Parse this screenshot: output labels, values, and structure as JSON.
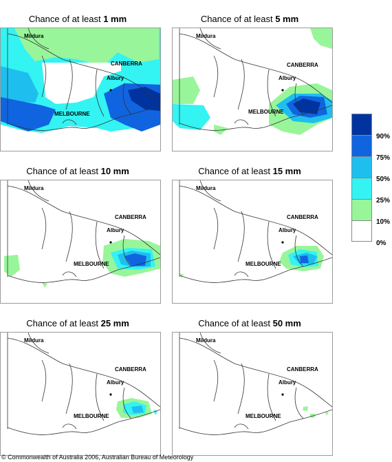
{
  "panels": [
    {
      "prefix": "Chance of at least ",
      "amount": "1 mm"
    },
    {
      "prefix": "Chance of at least ",
      "amount": "5 mm"
    },
    {
      "prefix": "Chance of at least ",
      "amount": "10 mm"
    },
    {
      "prefix": "Chance of at least ",
      "amount": "15 mm"
    },
    {
      "prefix": "Chance of at least ",
      "amount": "25 mm"
    },
    {
      "prefix": "Chance of at least ",
      "amount": "50 mm"
    }
  ],
  "places": {
    "mildura": "Mildura",
    "canberra": "CANBERRA",
    "albury": "Albury",
    "melbourne": "MELBOURNE"
  },
  "legend": {
    "labels": [
      "90%",
      "75%",
      "50%",
      "25%",
      "10%",
      "0%"
    ],
    "colors": [
      "#0033a0",
      "#1064e0",
      "#1ebfef",
      "#33f3f3",
      "#99f59a",
      "#ffffff"
    ]
  },
  "copyright": "© Commonwealth of Australia 2006, Australian Bureau of Meteorology"
}
